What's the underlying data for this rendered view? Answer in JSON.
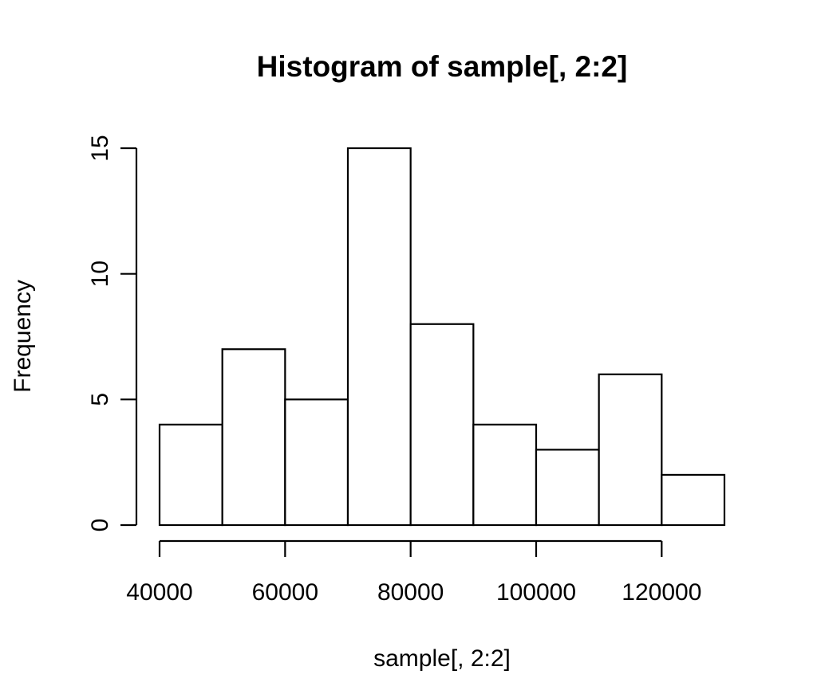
{
  "chart_data": {
    "type": "bar",
    "title": "Histogram of sample[, 2:2]",
    "xlabel": "sample[, 2:2]",
    "ylabel": "Frequency",
    "bins": [
      {
        "from": 40000,
        "to": 50000,
        "count": 4
      },
      {
        "from": 50000,
        "to": 60000,
        "count": 7
      },
      {
        "from": 60000,
        "to": 70000,
        "count": 5
      },
      {
        "from": 70000,
        "to": 80000,
        "count": 15
      },
      {
        "from": 80000,
        "to": 90000,
        "count": 8
      },
      {
        "from": 90000,
        "to": 100000,
        "count": 4
      },
      {
        "from": 100000,
        "to": 110000,
        "count": 3
      },
      {
        "from": 110000,
        "to": 120000,
        "count": 6
      },
      {
        "from": 120000,
        "to": 130000,
        "count": 2
      }
    ],
    "x_ticks": [
      "40000",
      "60000",
      "80000",
      "100000",
      "120000"
    ],
    "x_tick_values": [
      40000,
      60000,
      80000,
      100000,
      120000
    ],
    "y_ticks": [
      "0",
      "5",
      "10",
      "15"
    ],
    "y_tick_values": [
      0,
      5,
      10,
      15
    ],
    "xlim": [
      40000,
      130000
    ],
    "ylim": [
      0,
      15
    ],
    "grid": false,
    "bar_fill": "#ffffff",
    "bar_stroke": "#000000"
  }
}
